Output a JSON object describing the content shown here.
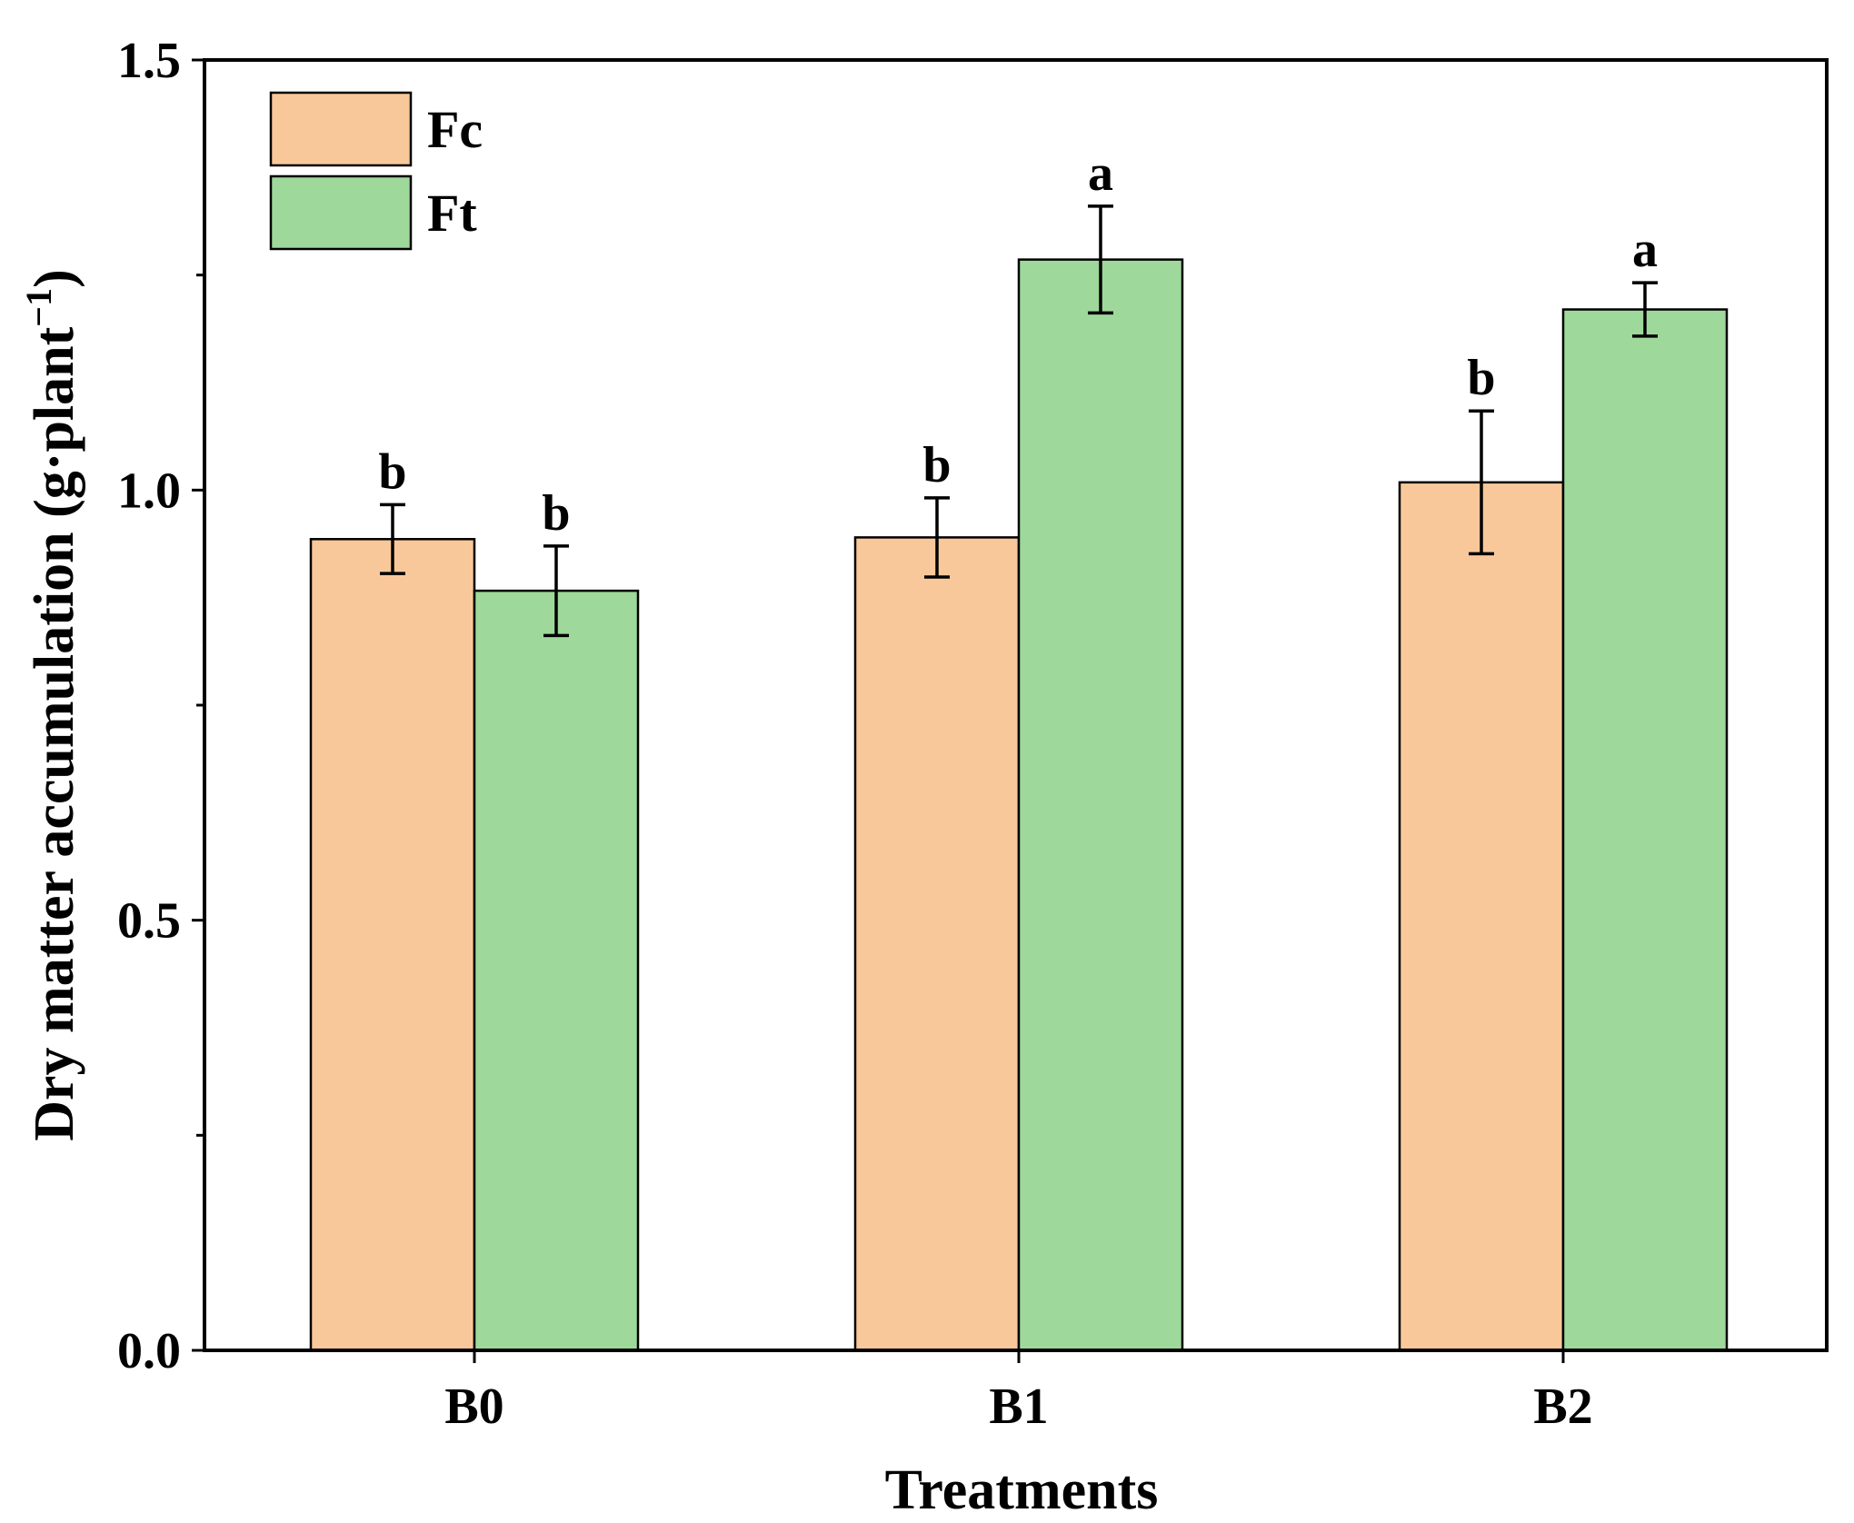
{
  "chart_data": {
    "type": "bar",
    "title": "",
    "xlabel": "Treatments",
    "ylabel": "Dry matter accumulation (g·plant",
    "ylabel_superscript": "−1",
    "ylabel_close": ")",
    "ylim": [
      0,
      1.5
    ],
    "yticks": [
      0.0,
      0.25,
      0.5,
      0.75,
      1.0,
      1.25,
      1.5
    ],
    "ytick_labels": [
      "0.0",
      "0.5",
      "1.0",
      "1.5"
    ],
    "labeled_ticks": [
      0.0,
      0.5,
      1.0,
      1.5
    ],
    "categories": [
      "B0",
      "B1",
      "B2"
    ],
    "legend_position": "top-left",
    "series": [
      {
        "name": "Fc",
        "color": "#F9C89A",
        "values": [
          0.943,
          0.945,
          1.009
        ],
        "errors": [
          0.04,
          0.046,
          0.083
        ],
        "letters": [
          "b",
          "b",
          "b"
        ]
      },
      {
        "name": "Ft",
        "color": "#9ED89A",
        "values": [
          0.883,
          1.268,
          1.21
        ],
        "errors": [
          0.052,
          0.062,
          0.031
        ],
        "letters": [
          "b",
          "a",
          "a"
        ]
      }
    ]
  }
}
